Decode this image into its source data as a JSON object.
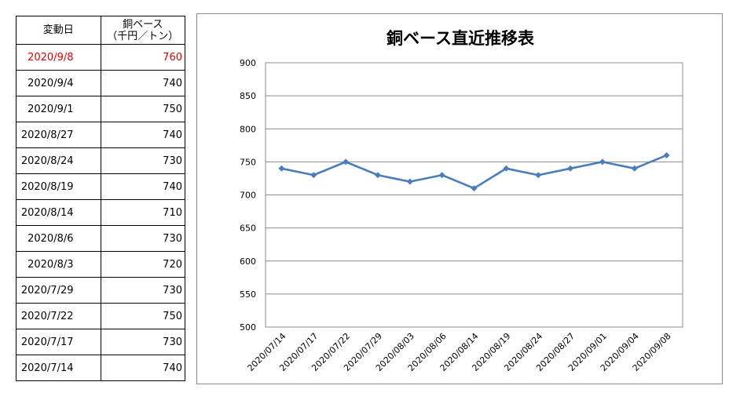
{
  "table": {
    "header": {
      "date": "変動日",
      "price_line1": "銅ベース",
      "price_line2": "（千円／トン）"
    },
    "rows": [
      {
        "date": "2020/9/8",
        "price": "760"
      },
      {
        "date": "2020/9/4",
        "price": "740"
      },
      {
        "date": "2020/9/1",
        "price": "750"
      },
      {
        "date": "2020/8/27",
        "price": "740"
      },
      {
        "date": "2020/8/24",
        "price": "730"
      },
      {
        "date": "2020/8/19",
        "price": "740"
      },
      {
        "date": "2020/8/14",
        "price": "710"
      },
      {
        "date": "2020/8/6",
        "price": "730"
      },
      {
        "date": "2020/8/3",
        "price": "720"
      },
      {
        "date": "2020/7/29",
        "price": "730"
      },
      {
        "date": "2020/7/22",
        "price": "750"
      },
      {
        "date": "2020/7/17",
        "price": "730"
      },
      {
        "date": "2020/7/14",
        "price": "740"
      }
    ],
    "highlight_color": "#e00000"
  },
  "chart_data": {
    "type": "line",
    "title": "銅ベース直近推移表",
    "xlabel": "",
    "ylabel": "",
    "categories": [
      "2020/07/14",
      "2020/07/17",
      "2020/07/22",
      "2020/07/29",
      "2020/08/03",
      "2020/08/06",
      "2020/08/14",
      "2020/08/19",
      "2020/08/24",
      "2020/08/27",
      "2020/09/01",
      "2020/09/04",
      "2020/09/08"
    ],
    "series": [
      {
        "values": [
          740,
          730,
          750,
          730,
          720,
          730,
          710,
          740,
          730,
          740,
          750,
          740,
          760
        ],
        "color": "#4a7ebb"
      }
    ],
    "ylim": [
      500,
      900
    ],
    "yticks": [
      500,
      550,
      600,
      650,
      700,
      750,
      800,
      850,
      900
    ],
    "grid": true,
    "marker": "diamond",
    "legend": "none"
  }
}
